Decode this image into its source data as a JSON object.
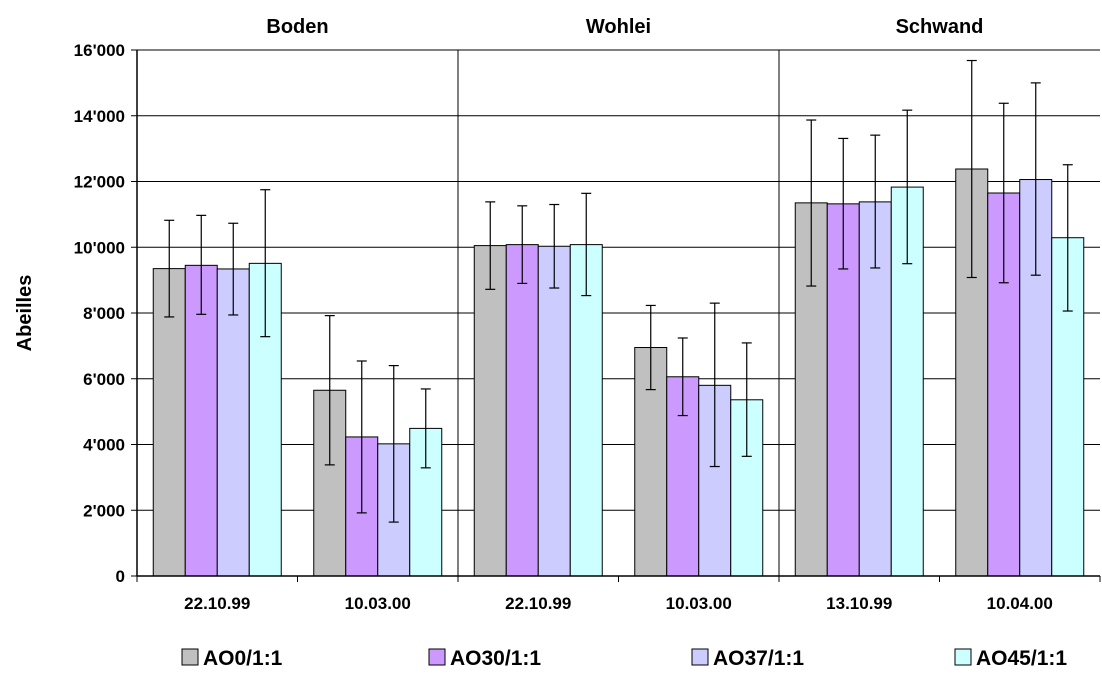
{
  "chart_data": {
    "type": "bar",
    "title": "",
    "xlabel": "",
    "ylabel": "Abeilles",
    "ylim": [
      0,
      16000
    ],
    "yticks": [
      0,
      2000,
      4000,
      6000,
      8000,
      10000,
      12000,
      14000,
      16000
    ],
    "ytick_labels": [
      "0",
      "2'000",
      "4'000",
      "6'000",
      "8'000",
      "10'000",
      "12'000",
      "14'000",
      "16'000"
    ],
    "grid": "horizontal",
    "legend_position": "bottom",
    "groups": [
      {
        "name": "Boden",
        "dates": [
          "22.10.99",
          "10.03.00"
        ]
      },
      {
        "name": "Wohlei",
        "dates": [
          "22.10.99",
          "10.03.00"
        ]
      },
      {
        "name": "Schwand",
        "dates": [
          "13.10.99",
          "10.04.00"
        ]
      }
    ],
    "categories": [
      "22.10.99",
      "10.03.00",
      "22.10.99",
      "10.03.00",
      "13.10.99",
      "10.04.00"
    ],
    "series": [
      {
        "name": "AO0/1:1",
        "color": "#c0c0c0",
        "values": [
          9350,
          5650,
          10050,
          6950,
          11350,
          12380
        ],
        "error_low": [
          7880,
          3380,
          8720,
          5670,
          8820,
          9080
        ],
        "error_high": [
          10820,
          7920,
          11380,
          8230,
          13870,
          15680
        ]
      },
      {
        "name": "AO30/1:1",
        "color": "#cc99ff",
        "values": [
          9450,
          4230,
          10080,
          6060,
          11320,
          11650
        ],
        "error_low": [
          7960,
          1920,
          8900,
          4880,
          9340,
          8920
        ],
        "error_high": [
          10970,
          6540,
          11260,
          7240,
          13310,
          14380
        ]
      },
      {
        "name": "AO37/1:1",
        "color": "#ccccff",
        "values": [
          9340,
          4020,
          10030,
          5800,
          11380,
          12060
        ],
        "error_low": [
          7940,
          1640,
          8760,
          3330,
          9370,
          9150
        ],
        "error_high": [
          10730,
          6400,
          11300,
          8300,
          13410,
          15000
        ]
      },
      {
        "name": "AO45/1:1",
        "color": "#ccffff",
        "values": [
          9510,
          4490,
          10080,
          5360,
          11830,
          10290
        ],
        "error_low": [
          7280,
          3290,
          8530,
          3640,
          9500,
          8060
        ],
        "error_high": [
          11750,
          5690,
          11640,
          7090,
          14170,
          12510
        ]
      }
    ]
  }
}
